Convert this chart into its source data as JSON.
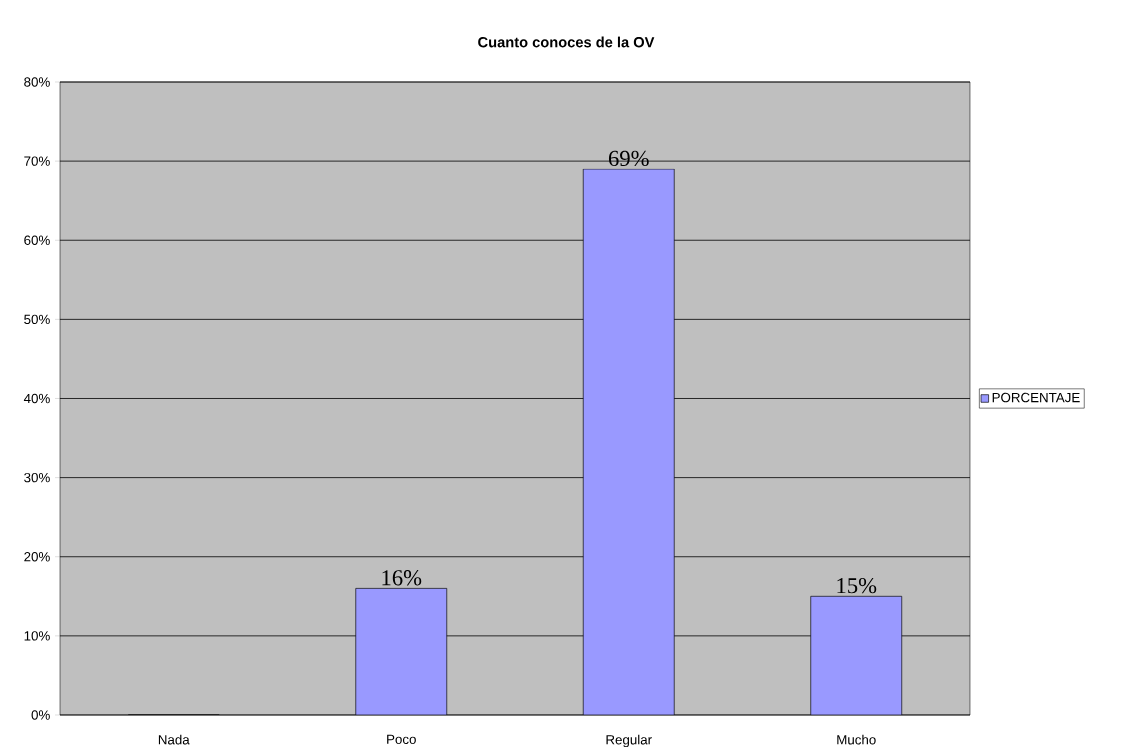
{
  "chart_data": {
    "type": "bar",
    "title": "Cuanto conoces de la OV",
    "categories": [
      "Nada",
      "Poco",
      "Regular",
      "Mucho"
    ],
    "series": [
      {
        "name": "PORCENTAJE",
        "color": "#9999ff",
        "values": [
          0,
          16,
          69,
          15
        ]
      }
    ],
    "value_labels": [
      null,
      "16%",
      "69%",
      "15%"
    ],
    "ylim": [
      0,
      80
    ],
    "yticks": [
      {
        "value": 0,
        "label": "0%"
      },
      {
        "value": 10,
        "label": "10%"
      },
      {
        "value": 20,
        "label": "20%"
      },
      {
        "value": 30,
        "label": "30%"
      },
      {
        "value": 40,
        "label": "40%"
      },
      {
        "value": 50,
        "label": "50%"
      },
      {
        "value": 60,
        "label": "60%"
      },
      {
        "value": 70,
        "label": "70%"
      },
      {
        "value": 80,
        "label": "80%"
      }
    ],
    "grid": "y",
    "legend": "right"
  }
}
